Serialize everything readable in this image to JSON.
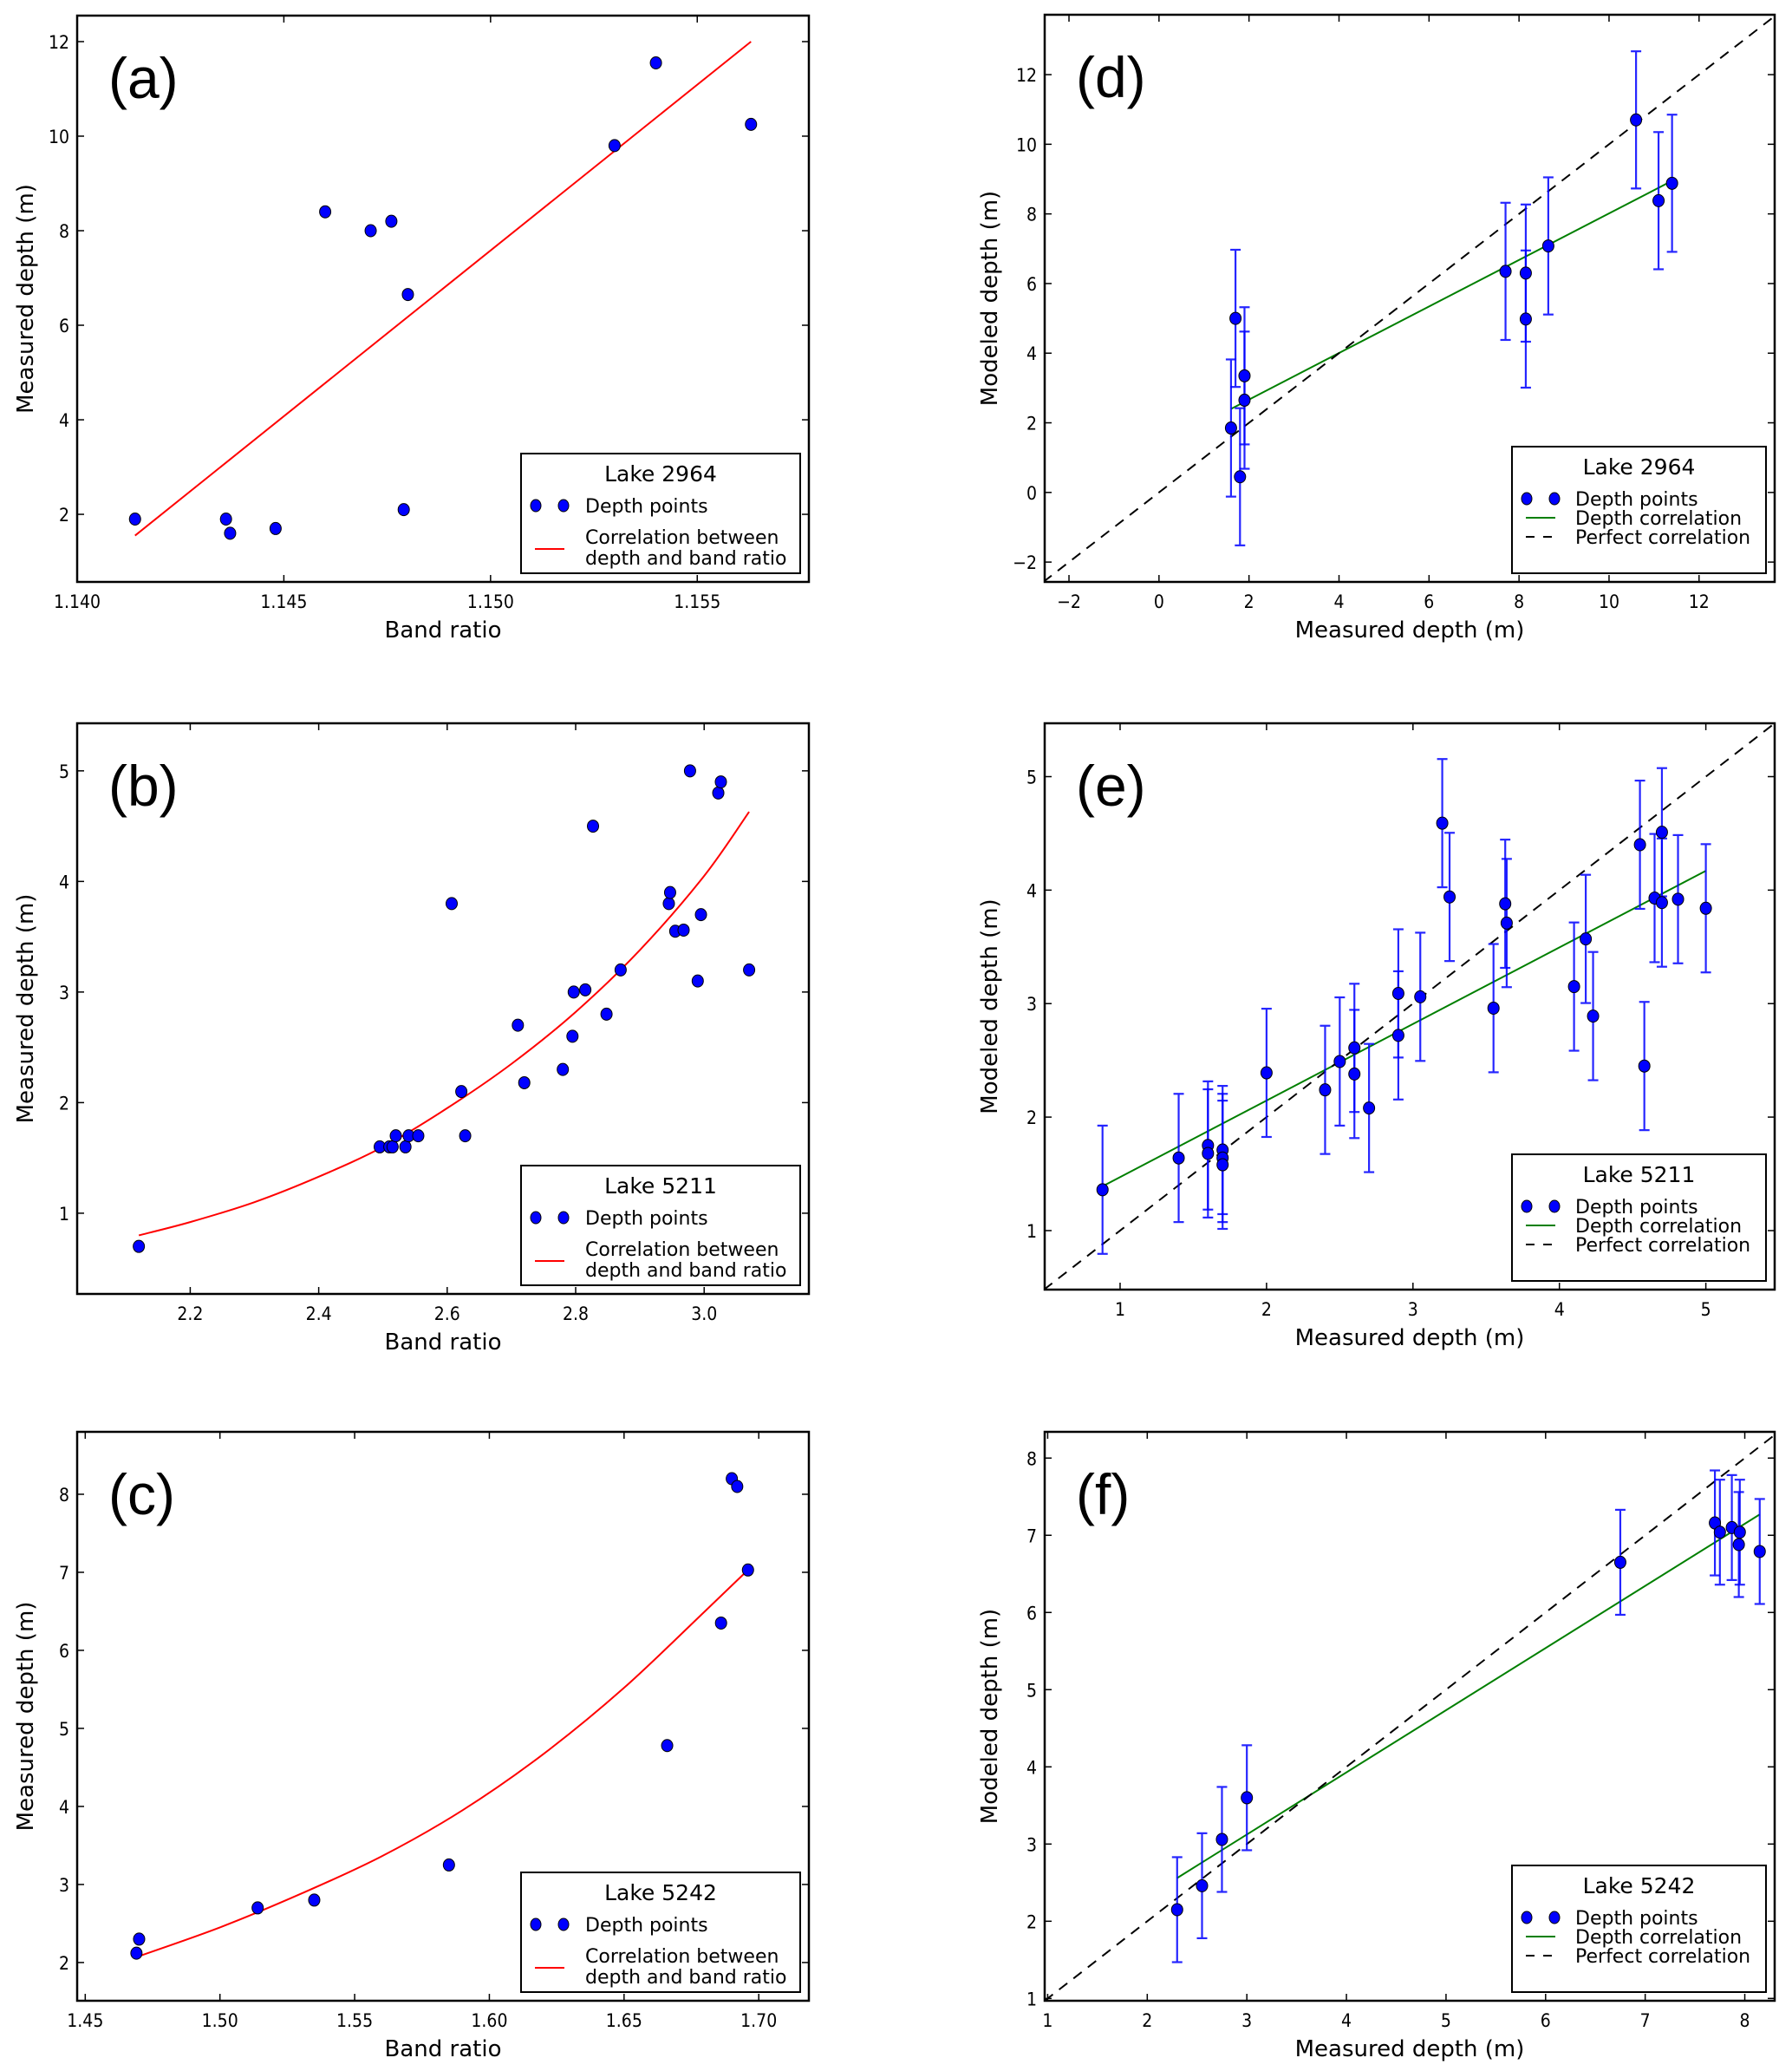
{
  "chart_data": [
    {
      "id": "a",
      "type": "scatter",
      "panel_label": "(a)",
      "title": "",
      "xlabel": "Band ratio",
      "ylabel": "Measured depth (m)",
      "xlim": [
        1.14,
        1.1577
      ],
      "ylim": [
        0.57,
        12.55
      ],
      "xticks": [
        1.14,
        1.145,
        1.15,
        1.155
      ],
      "xtick_labels": [
        "1.140",
        "1.145",
        "1.150",
        "1.155"
      ],
      "yticks": [
        2,
        4,
        6,
        8,
        10,
        12
      ],
      "ytick_labels": [
        "2",
        "4",
        "6",
        "8",
        "10",
        "12"
      ],
      "grid": false,
      "legend": {
        "title": "Lake 2964",
        "placement": "lower-right",
        "entries": [
          {
            "label": "Depth points",
            "kind": "marker"
          },
          {
            "label": "Correlation between\ndepth and band ratio",
            "kind": "line",
            "color": "#ff0000"
          }
        ]
      },
      "series": [
        {
          "name": "Depth points",
          "kind": "points",
          "color": "#0000ff",
          "x": [
            1.1414,
            1.1436,
            1.1437,
            1.1448,
            1.146,
            1.1471,
            1.1476,
            1.1479,
            1.148,
            1.153,
            1.154,
            1.1563
          ],
          "y": [
            1.9,
            1.9,
            1.6,
            1.7,
            8.4,
            8.0,
            8.2,
            2.1,
            6.65,
            9.8,
            11.55,
            10.25
          ]
        },
        {
          "name": "Correlation between depth and band ratio",
          "kind": "line",
          "color": "#ff0000",
          "x": [
            1.1414,
            1.1563
          ],
          "y": [
            1.55,
            12.0
          ]
        }
      ]
    },
    {
      "id": "b",
      "type": "scatter",
      "panel_label": "(b)",
      "title": "",
      "xlabel": "Band ratio",
      "ylabel": "Measured depth (m)",
      "xlim": [
        2.024,
        3.163
      ],
      "ylim": [
        0.27,
        5.43
      ],
      "xticks": [
        2.2,
        2.4,
        2.6,
        2.8,
        3.0
      ],
      "xtick_labels": [
        "2.2",
        "2.4",
        "2.6",
        "2.8",
        "3.0"
      ],
      "yticks": [
        1,
        2,
        3,
        4,
        5
      ],
      "ytick_labels": [
        "1",
        "2",
        "3",
        "4",
        "5"
      ],
      "grid": false,
      "legend": {
        "title": "Lake 5211",
        "placement": "lower-right",
        "entries": [
          {
            "label": "Depth points",
            "kind": "marker"
          },
          {
            "label": "Correlation between\ndepth and band ratio",
            "kind": "line",
            "color": "#ff0000"
          }
        ]
      },
      "series": [
        {
          "name": "Depth points",
          "kind": "points",
          "color": "#0000ff",
          "x": [
            2.12,
            2.495,
            2.51,
            2.515,
            2.52,
            2.535,
            2.54,
            2.555,
            2.607,
            2.622,
            2.628,
            2.71,
            2.72,
            2.78,
            2.795,
            2.797,
            2.815,
            2.827,
            2.848,
            2.87,
            2.945,
            2.947,
            2.955,
            2.968,
            2.978,
            2.99,
            2.995,
            3.022,
            3.026,
            3.07
          ],
          "y": [
            0.7,
            1.6,
            1.6,
            1.6,
            1.7,
            1.6,
            1.7,
            1.7,
            3.8,
            2.1,
            1.7,
            2.7,
            2.18,
            2.3,
            2.6,
            3.0,
            3.02,
            4.5,
            2.8,
            3.2,
            3.8,
            3.9,
            3.55,
            3.56,
            5.0,
            3.1,
            3.7,
            4.8,
            4.9,
            3.2
          ]
        },
        {
          "name": "Correlation between depth and band ratio",
          "kind": "curve",
          "color": "#ff0000",
          "x": [
            2.12,
            2.2,
            2.3,
            2.4,
            2.5,
            2.6,
            2.7,
            2.8,
            2.9,
            3.0,
            3.07
          ],
          "y": [
            0.8,
            0.92,
            1.1,
            1.33,
            1.6,
            1.95,
            2.35,
            2.82,
            3.38,
            4.05,
            4.63
          ]
        }
      ]
    },
    {
      "id": "c",
      "type": "scatter",
      "panel_label": "(c)",
      "title": "",
      "xlabel": "Band ratio",
      "ylabel": "Measured depth (m)",
      "xlim": [
        1.447,
        1.7186
      ],
      "ylim": [
        1.51,
        8.8
      ],
      "xticks": [
        1.45,
        1.5,
        1.55,
        1.6,
        1.65,
        1.7
      ],
      "xtick_labels": [
        "1.45",
        "1.50",
        "1.55",
        "1.60",
        "1.65",
        "1.70"
      ],
      "yticks": [
        2,
        3,
        4,
        5,
        6,
        7,
        8
      ],
      "ytick_labels": [
        "2",
        "3",
        "4",
        "5",
        "6",
        "7",
        "8"
      ],
      "grid": false,
      "legend": {
        "title": "Lake 5242",
        "placement": "lower-right",
        "entries": [
          {
            "label": "Depth points",
            "kind": "marker"
          },
          {
            "label": "Correlation between\ndepth and band ratio",
            "kind": "line",
            "color": "#ff0000"
          }
        ]
      },
      "series": [
        {
          "name": "Depth points",
          "kind": "points",
          "color": "#0000ff",
          "x": [
            1.469,
            1.47,
            1.514,
            1.535,
            1.585,
            1.666,
            1.686,
            1.69,
            1.692,
            1.696
          ],
          "y": [
            2.12,
            2.3,
            2.7,
            2.8,
            3.25,
            4.78,
            6.35,
            8.2,
            8.1,
            7.03
          ]
        },
        {
          "name": "Correlation between depth and band ratio",
          "kind": "curve",
          "color": "#ff0000",
          "x": [
            1.469,
            1.5,
            1.53,
            1.56,
            1.59,
            1.62,
            1.65,
            1.68,
            1.696
          ],
          "y": [
            2.07,
            2.45,
            2.88,
            3.36,
            3.95,
            4.67,
            5.52,
            6.5,
            7.03
          ]
        }
      ]
    },
    {
      "id": "d",
      "type": "scatter",
      "panel_label": "(d)",
      "title": "",
      "xlabel": "Measured depth (m)",
      "ylabel": "Modeled depth (m)",
      "xlim": [
        -2.54,
        13.68
      ],
      "ylim": [
        -2.57,
        13.72
      ],
      "xticks": [
        -2,
        0,
        2,
        4,
        6,
        8,
        10,
        12
      ],
      "xtick_labels": [
        "−2",
        "0",
        "2",
        "4",
        "6",
        "8",
        "10",
        "12"
      ],
      "yticks": [
        -2,
        0,
        2,
        4,
        6,
        8,
        10,
        12
      ],
      "ytick_labels": [
        "−2",
        "0",
        "2",
        "4",
        "6",
        "8",
        "10",
        "12"
      ],
      "grid": false,
      "legend": {
        "title": "Lake 2964",
        "placement": "lower-right",
        "entries": [
          {
            "label": "Depth points",
            "kind": "marker"
          },
          {
            "label": "Depth correlation",
            "kind": "line",
            "color": "#007f00"
          },
          {
            "label": "Perfect correlation",
            "kind": "dashed",
            "color": "#000000"
          }
        ]
      },
      "series": [
        {
          "name": "Depth points",
          "kind": "points",
          "color": "#0000ff",
          "x": [
            1.6,
            1.7,
            1.8,
            1.9,
            1.9,
            7.7,
            8.15,
            8.15,
            8.65,
            10.6,
            11.1,
            11.4
          ],
          "y": [
            1.85,
            5.0,
            0.45,
            3.35,
            2.65,
            6.35,
            6.3,
            4.98,
            7.08,
            10.7,
            8.38,
            8.88
          ],
          "yerr": 1.97
        },
        {
          "name": "Depth correlation",
          "kind": "line",
          "color": "#007f00",
          "x": [
            1.6,
            11.4
          ],
          "y": [
            2.4,
            8.95
          ]
        },
        {
          "name": "Perfect correlation",
          "kind": "dashed",
          "color": "#000000",
          "x": [
            -2.57,
            13.72
          ],
          "y": [
            -2.57,
            13.72
          ]
        }
      ]
    },
    {
      "id": "e",
      "type": "scatter",
      "panel_label": "(e)",
      "title": "",
      "xlabel": "Measured depth (m)",
      "ylabel": "Modeled depth (m)",
      "xlim": [
        0.485,
        5.47
      ],
      "ylim": [
        0.48,
        5.47
      ],
      "xticks": [
        1,
        2,
        3,
        4,
        5
      ],
      "xtick_labels": [
        "1",
        "2",
        "3",
        "4",
        "5"
      ],
      "yticks": [
        1,
        2,
        3,
        4,
        5
      ],
      "ytick_labels": [
        "1",
        "2",
        "3",
        "4",
        "5"
      ],
      "grid": false,
      "legend": {
        "title": "Lake 5211",
        "placement": "lower-right",
        "entries": [
          {
            "label": "Depth points",
            "kind": "marker"
          },
          {
            "label": "Depth correlation",
            "kind": "line",
            "color": "#007f00"
          },
          {
            "label": "Perfect correlation",
            "kind": "dashed",
            "color": "#000000"
          }
        ]
      },
      "series": [
        {
          "name": "Depth points",
          "kind": "points",
          "color": "#0000ff",
          "x": [
            0.88,
            1.4,
            1.6,
            1.6,
            1.7,
            1.7,
            1.7,
            2.0,
            2.4,
            2.5,
            2.6,
            2.6,
            2.7,
            2.9,
            2.9,
            3.05,
            3.2,
            3.25,
            3.55,
            3.63,
            3.64,
            4.1,
            4.18,
            4.23,
            4.55,
            4.58,
            4.65,
            4.7,
            4.7,
            4.81,
            5.0
          ],
          "y": [
            1.36,
            1.64,
            1.75,
            1.68,
            1.71,
            1.64,
            1.58,
            2.39,
            2.24,
            2.49,
            2.61,
            2.38,
            2.08,
            3.09,
            2.72,
            3.06,
            4.59,
            3.94,
            2.96,
            3.88,
            3.71,
            3.15,
            3.57,
            2.89,
            4.4,
            2.45,
            3.93,
            4.51,
            3.89,
            3.92,
            3.84
          ],
          "yerr": 0.565
        },
        {
          "name": "Depth correlation",
          "kind": "line",
          "color": "#007f00",
          "x": [
            0.88,
            5.0
          ],
          "y": [
            1.39,
            4.17
          ]
        },
        {
          "name": "Perfect correlation",
          "kind": "dashed",
          "color": "#000000",
          "x": [
            0.48,
            5.47
          ],
          "y": [
            0.48,
            5.47
          ]
        }
      ]
    },
    {
      "id": "f",
      "type": "scatter",
      "panel_label": "(f)",
      "title": "",
      "xlabel": "Measured depth (m)",
      "ylabel": "Modeled depth (m)",
      "xlim": [
        0.97,
        8.3
      ],
      "ylim": [
        0.97,
        8.34
      ],
      "xticks": [
        1,
        2,
        3,
        4,
        5,
        6,
        7,
        8
      ],
      "xtick_labels": [
        "1",
        "2",
        "3",
        "4",
        "5",
        "6",
        "7",
        "8"
      ],
      "yticks": [
        1,
        2,
        3,
        4,
        5,
        6,
        7,
        8
      ],
      "ytick_labels": [
        "1",
        "2",
        "3",
        "4",
        "5",
        "6",
        "7",
        "8"
      ],
      "grid": false,
      "legend": {
        "title": "Lake 5242",
        "placement": "lower-right",
        "entries": [
          {
            "label": "Depth points",
            "kind": "marker"
          },
          {
            "label": "Depth correlation",
            "kind": "line",
            "color": "#007f00"
          },
          {
            "label": "Perfect correlation",
            "kind": "dashed",
            "color": "#000000"
          }
        ]
      },
      "series": [
        {
          "name": "Depth points",
          "kind": "points",
          "color": "#0000ff",
          "x": [
            2.3,
            2.55,
            2.75,
            3.0,
            6.75,
            7.7,
            7.75,
            7.87,
            7.94,
            7.95,
            8.15
          ],
          "y": [
            2.15,
            2.46,
            3.06,
            3.6,
            6.65,
            7.16,
            7.04,
            7.1,
            6.88,
            7.04,
            6.79
          ],
          "yerr": 0.68
        },
        {
          "name": "Depth correlation",
          "kind": "line",
          "color": "#007f00",
          "x": [
            2.3,
            8.15
          ],
          "y": [
            2.56,
            7.27
          ]
        },
        {
          "name": "Perfect correlation",
          "kind": "dashed",
          "color": "#000000",
          "x": [
            0.97,
            8.34
          ],
          "y": [
            0.97,
            8.34
          ]
        }
      ]
    }
  ]
}
